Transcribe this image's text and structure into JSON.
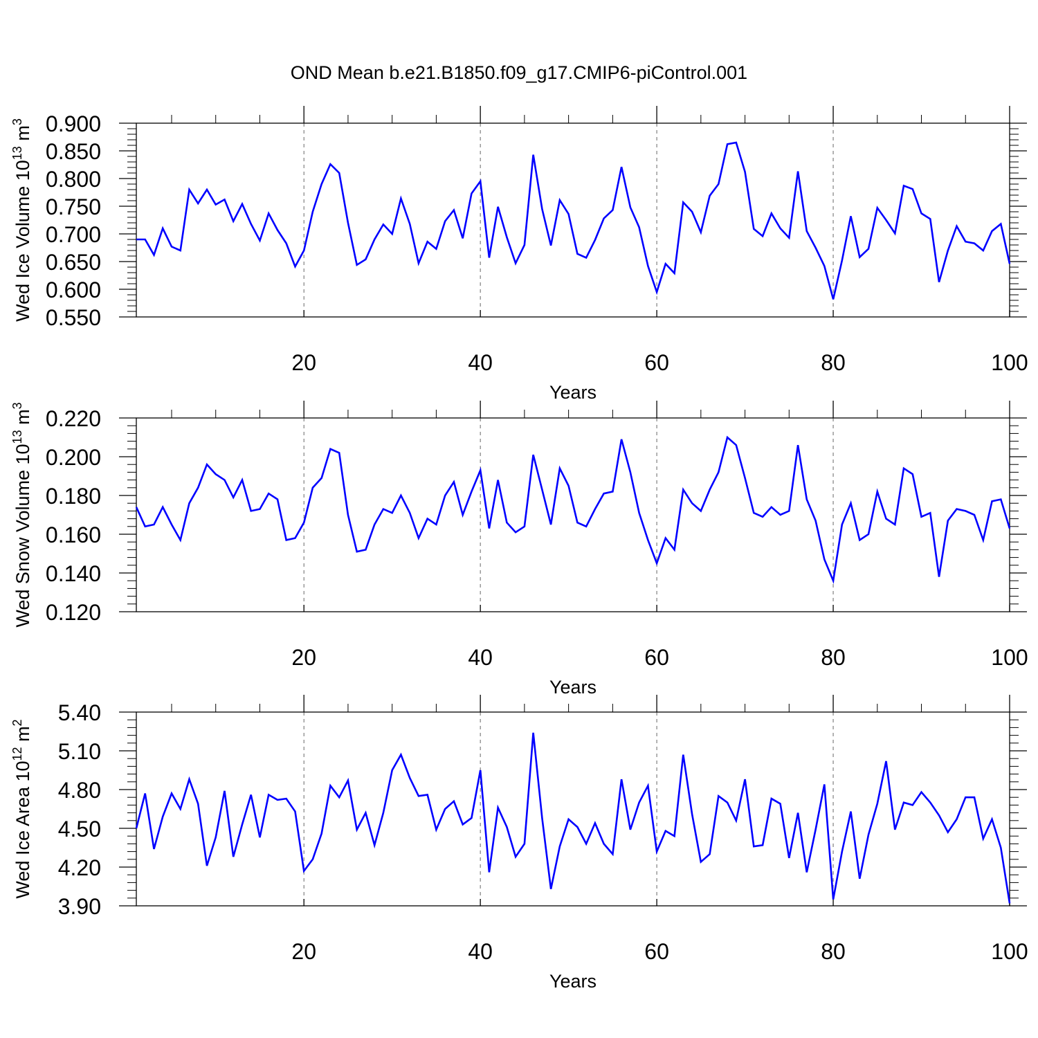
{
  "figure": {
    "title": "OND Mean b.e21.B1850.f09_g17.CMIP6-piControl.001"
  },
  "colors": {
    "line": "#0000ff",
    "axis": "#000000",
    "grid": "#666666"
  },
  "chart_data": [
    {
      "type": "line",
      "title": "",
      "xlabel": "Years",
      "ylabel": {
        "base": "Wed Ice Volume 10",
        "exp1": "13",
        "unit": " m",
        "exp2": "3"
      },
      "xlim": [
        1,
        100
      ],
      "ylim": [
        0.55,
        0.9
      ],
      "xticks": [
        20,
        40,
        60,
        80,
        100
      ],
      "yticks": [
        "0.550",
        "0.600",
        "0.650",
        "0.700",
        "0.750",
        "0.800",
        "0.850",
        "0.900"
      ],
      "ytick_values": [
        0.55,
        0.6,
        0.65,
        0.7,
        0.75,
        0.8,
        0.85,
        0.9
      ],
      "grid": "vertical dashed at 20, 40, 60, 80",
      "series": [
        {
          "values": [
            0.69,
            0.69,
            0.662,
            0.71,
            0.677,
            0.67,
            0.78,
            0.755,
            0.78,
            0.753,
            0.762,
            0.723,
            0.754,
            0.718,
            0.688,
            0.737,
            0.707,
            0.683,
            0.641,
            0.67,
            0.74,
            0.79,
            0.826,
            0.81,
            0.72,
            0.644,
            0.654,
            0.69,
            0.717,
            0.7,
            0.764,
            0.718,
            0.647,
            0.686,
            0.673,
            0.723,
            0.743,
            0.692,
            0.773,
            0.795,
            0.657,
            0.749,
            0.694,
            0.647,
            0.68,
            0.843,
            0.745,
            0.679,
            0.761,
            0.736,
            0.664,
            0.657,
            0.689,
            0.728,
            0.743,
            0.821,
            0.748,
            0.712,
            0.642,
            0.595,
            0.646,
            0.629,
            0.757,
            0.74,
            0.703,
            0.769,
            0.79,
            0.862,
            0.865,
            0.812,
            0.709,
            0.696,
            0.737,
            0.71,
            0.693,
            0.813,
            0.705,
            0.675,
            0.642,
            0.582,
            0.652,
            0.732,
            0.658,
            0.673,
            0.747,
            0.725,
            0.701,
            0.787,
            0.781,
            0.737,
            0.727,
            0.613,
            0.67,
            0.714,
            0.686,
            0.683,
            0.67,
            0.705,
            0.718,
            0.646
          ]
        }
      ]
    },
    {
      "type": "line",
      "title": "",
      "xlabel": "Years",
      "ylabel": {
        "base": "Wed Snow Volume 10",
        "exp1": "13",
        "unit": " m",
        "exp2": "3"
      },
      "xlim": [
        1,
        100
      ],
      "ylim": [
        0.12,
        0.22
      ],
      "xticks": [
        20,
        40,
        60,
        80,
        100
      ],
      "yticks": [
        "0.120",
        "0.140",
        "0.160",
        "0.180",
        "0.200",
        "0.220"
      ],
      "ytick_values": [
        0.12,
        0.14,
        0.16,
        0.18,
        0.2,
        0.22
      ],
      "grid": "vertical dashed at 20, 40, 60, 80",
      "series": [
        {
          "values": [
            0.174,
            0.164,
            0.165,
            0.174,
            0.165,
            0.157,
            0.176,
            0.184,
            0.196,
            0.191,
            0.188,
            0.179,
            0.188,
            0.172,
            0.173,
            0.181,
            0.178,
            0.157,
            0.158,
            0.166,
            0.184,
            0.189,
            0.204,
            0.202,
            0.17,
            0.151,
            0.152,
            0.165,
            0.173,
            0.171,
            0.18,
            0.171,
            0.158,
            0.168,
            0.165,
            0.18,
            0.187,
            0.17,
            0.182,
            0.193,
            0.163,
            0.188,
            0.166,
            0.161,
            0.164,
            0.201,
            0.183,
            0.165,
            0.194,
            0.185,
            0.166,
            0.164,
            0.173,
            0.181,
            0.182,
            0.209,
            0.192,
            0.171,
            0.157,
            0.145,
            0.158,
            0.152,
            0.183,
            0.176,
            0.172,
            0.183,
            0.192,
            0.21,
            0.206,
            0.189,
            0.171,
            0.169,
            0.174,
            0.17,
            0.172,
            0.206,
            0.178,
            0.167,
            0.147,
            0.136,
            0.165,
            0.176,
            0.157,
            0.16,
            0.182,
            0.168,
            0.165,
            0.194,
            0.191,
            0.169,
            0.171,
            0.138,
            0.167,
            0.173,
            0.172,
            0.17,
            0.157,
            0.177,
            0.178,
            0.163
          ]
        }
      ]
    },
    {
      "type": "line",
      "title": "",
      "xlabel": "Years",
      "ylabel": {
        "base": "Wed Ice Area 10",
        "exp1": "12",
        "unit": " m",
        "exp2": "2"
      },
      "xlim": [
        1,
        100
      ],
      "ylim": [
        3.9,
        5.4
      ],
      "xticks": [
        20,
        40,
        60,
        80,
        100
      ],
      "yticks": [
        "3.90",
        "4.20",
        "4.50",
        "4.80",
        "5.10",
        "5.40"
      ],
      "ytick_values": [
        3.9,
        4.2,
        4.5,
        4.8,
        5.1,
        5.4
      ],
      "grid": "vertical dashed at 20, 40, 60, 80",
      "series": [
        {
          "values": [
            4.5,
            4.77,
            4.34,
            4.59,
            4.77,
            4.65,
            4.88,
            4.69,
            4.21,
            4.43,
            4.79,
            4.28,
            4.53,
            4.76,
            4.43,
            4.76,
            4.72,
            4.73,
            4.63,
            4.17,
            4.26,
            4.46,
            4.83,
            4.74,
            4.87,
            4.49,
            4.62,
            4.37,
            4.62,
            4.95,
            5.07,
            4.89,
            4.75,
            4.76,
            4.49,
            4.65,
            4.71,
            4.53,
            4.58,
            4.95,
            4.16,
            4.66,
            4.51,
            4.28,
            4.38,
            5.24,
            4.58,
            4.03,
            4.36,
            4.57,
            4.51,
            4.38,
            4.54,
            4.38,
            4.3,
            4.88,
            4.49,
            4.7,
            4.83,
            4.32,
            4.48,
            4.44,
            5.07,
            4.61,
            4.24,
            4.3,
            4.75,
            4.7,
            4.56,
            4.88,
            4.36,
            4.37,
            4.73,
            4.69,
            4.27,
            4.62,
            4.16,
            4.49,
            4.84,
            3.95,
            4.32,
            4.63,
            4.11,
            4.45,
            4.69,
            5.02,
            4.49,
            4.7,
            4.68,
            4.78,
            4.7,
            4.6,
            4.47,
            4.57,
            4.74,
            4.74,
            4.42,
            4.57,
            4.35,
            3.92
          ]
        }
      ]
    }
  ]
}
